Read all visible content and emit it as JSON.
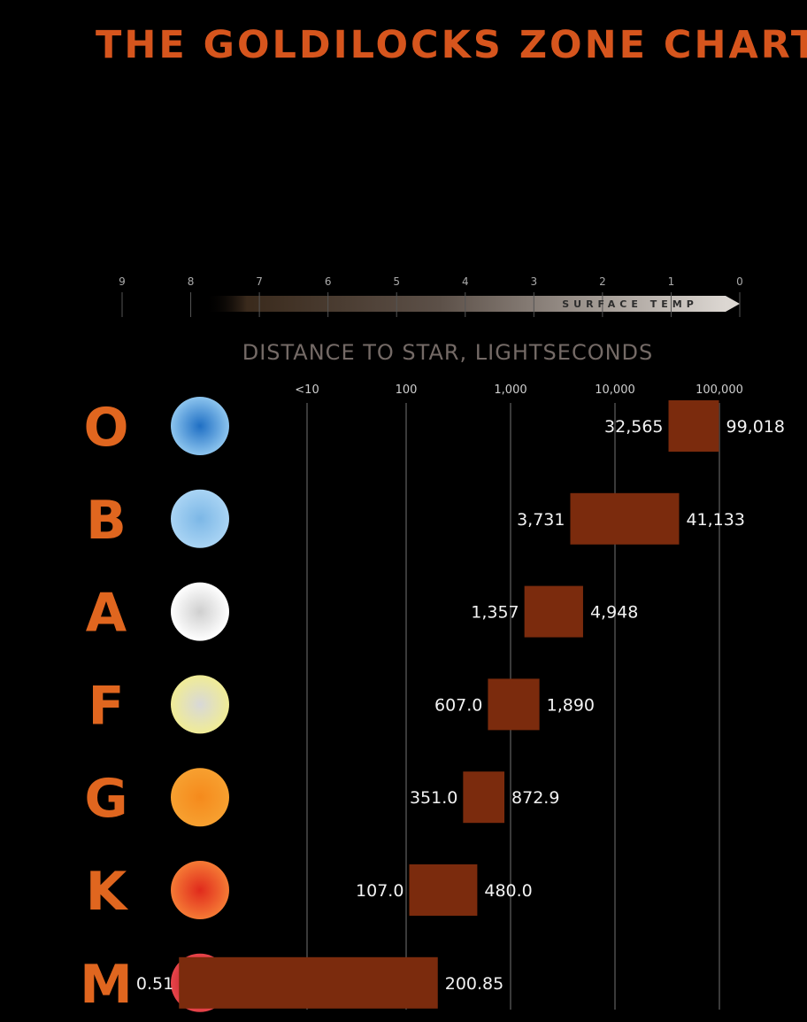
{
  "colors": {
    "background": "#000000",
    "title": "#d6551d",
    "class_letter": "#e0661f",
    "bar": "#7b2b0d",
    "gridline": "#3a3a3a",
    "value_text": "#f2f2f2"
  },
  "chart_data": {
    "type": "bar",
    "orientation": "horizontal-range",
    "title": "THE GOLDILOCKS ZONE CHART",
    "temperature_scale": {
      "tick_labels": [
        "9",
        "8",
        "7",
        "6",
        "5",
        "4",
        "3",
        "2",
        "1",
        "0"
      ],
      "label": "SURFACE TEMP"
    },
    "xlabel": "DISTANCE TO STAR, LIGHTSECONDS",
    "x_scale": "log",
    "x_tick_labels": [
      "<10",
      "100",
      "1,000",
      "10,000",
      "100,000"
    ],
    "x_tick_values": [
      10,
      100,
      1000,
      10000,
      100000
    ],
    "grid": "vertical",
    "categories": [
      "O",
      "B",
      "A",
      "F",
      "G",
      "K",
      "M"
    ],
    "star_colors": [
      {
        "center": "#1f6fc4",
        "edge": "#8cc4ee"
      },
      {
        "center": "#7cb7e6",
        "edge": "#a9d4f4"
      },
      {
        "center": "#cfcfcf",
        "edge": "#ffffff"
      },
      {
        "center": "#d8d8d8",
        "edge": "#f0ec96"
      },
      {
        "center": "#f58a1c",
        "edge": "#f7a030"
      },
      {
        "center": "#e02a1c",
        "edge": "#f57a35"
      },
      {
        "center": "#a8121a",
        "edge": "#e8444a"
      }
    ],
    "ranges": [
      {
        "class": "O",
        "min": 32565,
        "max": 99018,
        "min_label": "32,565",
        "max_label": "99,018"
      },
      {
        "class": "B",
        "min": 3731,
        "max": 41133,
        "min_label": "3,731",
        "max_label": "41,133"
      },
      {
        "class": "A",
        "min": 1357,
        "max": 4948,
        "min_label": "1,357",
        "max_label": "4,948"
      },
      {
        "class": "F",
        "min": 607.0,
        "max": 1890,
        "min_label": "607.0",
        "max_label": "1,890"
      },
      {
        "class": "G",
        "min": 351.0,
        "max": 872.9,
        "min_label": "351.0",
        "max_label": "872.9"
      },
      {
        "class": "K",
        "min": 107.0,
        "max": 480.0,
        "min_label": "107.0",
        "max_label": "480.0"
      },
      {
        "class": "M",
        "min": 0.51,
        "max": 200.85,
        "min_label": "0.51",
        "max_label": "200.85"
      }
    ]
  }
}
